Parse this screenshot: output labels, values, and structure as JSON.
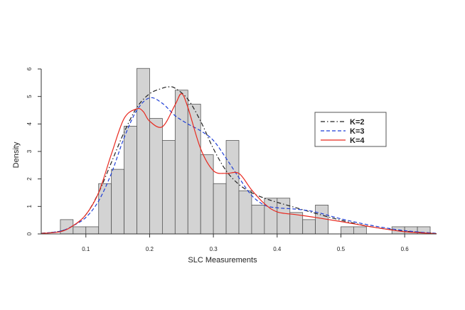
{
  "chart_data": {
    "type": "histogram",
    "xlabel": "SLC Measurements",
    "ylabel": "Density",
    "xlim": [
      0.03,
      0.65
    ],
    "ylim": [
      0,
      6
    ],
    "x_ticks": [
      0.1,
      0.2,
      0.3,
      0.4,
      0.5,
      0.6
    ],
    "x_tick_labels": [
      "0.1",
      "0.2",
      "0.3",
      "0.4",
      "0.5",
      "0.6"
    ],
    "y_ticks": [
      0,
      1,
      2,
      3,
      4,
      5,
      6
    ],
    "y_tick_labels": [
      "0",
      "1",
      "2",
      "3",
      "4",
      "5",
      "6"
    ],
    "histogram": {
      "bin_edges": [
        0.06,
        0.08,
        0.1,
        0.12,
        0.14,
        0.16,
        0.18,
        0.2,
        0.22,
        0.24,
        0.26,
        0.28,
        0.3,
        0.32,
        0.34,
        0.36,
        0.38,
        0.4,
        0.42,
        0.44,
        0.46,
        0.48,
        0.5,
        0.52,
        0.54,
        0.56,
        0.58,
        0.6,
        0.62,
        0.64
      ],
      "densities": [
        0.52,
        0.26,
        0.26,
        1.83,
        2.35,
        3.92,
        6.02,
        4.2,
        3.4,
        5.23,
        4.72,
        2.88,
        1.83,
        3.4,
        1.57,
        1.05,
        1.3,
        1.3,
        0.78,
        0.52,
        1.05,
        0,
        0.26,
        0.26,
        0,
        0,
        0.26,
        0.26,
        0.26
      ],
      "fill": "#d3d3d3",
      "edge": "#555555"
    },
    "series": [
      {
        "name": "K=2",
        "color": "#222222",
        "dash": "dashdot",
        "x": [
          0.03,
          0.06,
          0.08,
          0.1,
          0.12,
          0.14,
          0.16,
          0.18,
          0.2,
          0.22,
          0.23,
          0.24,
          0.26,
          0.28,
          0.3,
          0.32,
          0.34,
          0.36,
          0.38,
          0.4,
          0.43,
          0.46,
          0.5,
          0.55,
          0.6,
          0.65
        ],
        "y": [
          0.02,
          0.1,
          0.3,
          0.7,
          1.5,
          2.6,
          3.7,
          4.6,
          5.1,
          5.3,
          5.35,
          5.3,
          4.9,
          4.1,
          3.1,
          2.3,
          1.8,
          1.5,
          1.3,
          1.15,
          0.95,
          0.75,
          0.5,
          0.25,
          0.1,
          0.02
        ]
      },
      {
        "name": "K=3",
        "color": "#1f3fd6",
        "dash": "dashed",
        "x": [
          0.03,
          0.06,
          0.08,
          0.1,
          0.12,
          0.14,
          0.16,
          0.18,
          0.2,
          0.22,
          0.24,
          0.26,
          0.28,
          0.3,
          0.32,
          0.34,
          0.36,
          0.38,
          0.4,
          0.43,
          0.46,
          0.5,
          0.55,
          0.6,
          0.65
        ],
        "y": [
          0.02,
          0.1,
          0.3,
          0.6,
          1.2,
          2.2,
          3.5,
          4.5,
          4.95,
          4.75,
          4.3,
          4.0,
          3.75,
          3.4,
          2.75,
          2.05,
          1.4,
          1.05,
          0.95,
          0.9,
          0.8,
          0.55,
          0.3,
          0.12,
          0.02
        ]
      },
      {
        "name": "K=4",
        "color": "#e8291f",
        "dash": "solid",
        "x": [
          0.03,
          0.06,
          0.08,
          0.1,
          0.12,
          0.14,
          0.16,
          0.18,
          0.19,
          0.2,
          0.22,
          0.24,
          0.25,
          0.26,
          0.28,
          0.3,
          0.32,
          0.34,
          0.36,
          0.38,
          0.4,
          0.43,
          0.46,
          0.5,
          0.55,
          0.6,
          0.65
        ],
        "y": [
          0.02,
          0.08,
          0.3,
          0.7,
          1.5,
          2.9,
          4.2,
          4.55,
          4.45,
          4.1,
          3.9,
          4.7,
          5.1,
          4.6,
          3.1,
          2.3,
          2.2,
          2.2,
          1.6,
          1.1,
          0.8,
          0.7,
          0.6,
          0.45,
          0.25,
          0.08,
          0.01
        ]
      }
    ],
    "legend": {
      "placement": "right",
      "entries": [
        "K=2",
        "K=3",
        "K=4"
      ]
    }
  }
}
